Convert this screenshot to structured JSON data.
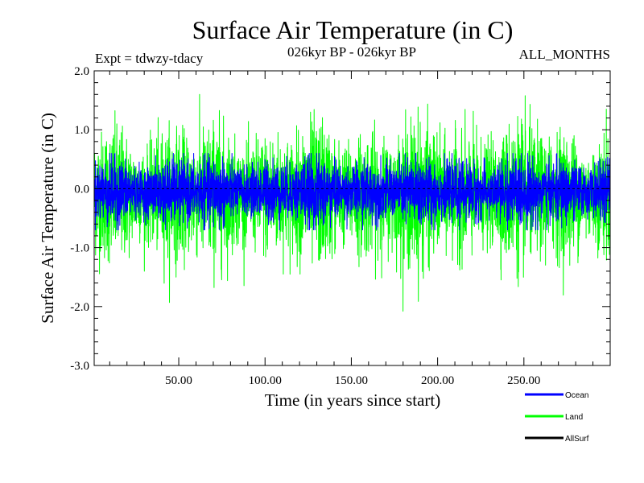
{
  "chart_data": {
    "type": "line",
    "title": "Surface Air Temperature (in C)",
    "subtitle_left": "Expt = tdwzy-tdacy",
    "subtitle_center": "026kyr BP - 026kyr BP",
    "subtitle_right": "ALL_MONTHS",
    "xlabel": "Time (in years since start)",
    "ylabel": "Surface Air Temperature (in C)",
    "xlim": [
      1,
      300
    ],
    "ylim": [
      -3.0,
      2.0
    ],
    "x_ticks": [
      50,
      100,
      150,
      200,
      250
    ],
    "x_tick_labels": [
      "50.00",
      "100.00",
      "150.00",
      "200.00",
      "250.00"
    ],
    "y_ticks": [
      2.0,
      1.0,
      0.0,
      -1.0,
      -2.0,
      -3.0
    ],
    "y_tick_labels": [
      "2.0",
      "1.0",
      "0.0",
      "-1.0",
      "-2.0",
      "-3.0"
    ],
    "zero_line": 0.0,
    "series": [
      {
        "name": "Land",
        "color": "#00ff00",
        "x_range": [
          1,
          300
        ],
        "samples": 3600,
        "typical_range": [
          -1.2,
          1.0
        ],
        "extremes": {
          "max": 1.65,
          "min": -2.1
        }
      },
      {
        "name": "Ocean",
        "color": "#0000ff",
        "x_range": [
          1,
          300
        ],
        "samples": 3600,
        "typical_range": [
          -0.6,
          0.5
        ],
        "extremes": {
          "max": 0.6,
          "min": -0.7
        }
      },
      {
        "name": "AllSurf",
        "color": "#000000",
        "x_range": [
          1,
          300
        ],
        "samples": 0,
        "typical_range": [
          0.0,
          0.0
        ],
        "extremes": {
          "max": 0.0,
          "min": 0.0
        }
      }
    ],
    "legend": [
      {
        "name": "Ocean",
        "color": "#0000ff"
      },
      {
        "name": "Land",
        "color": "#00ff00"
      },
      {
        "name": "AllSurf",
        "color": "#000000"
      }
    ],
    "legend_position": "bottom-right"
  }
}
